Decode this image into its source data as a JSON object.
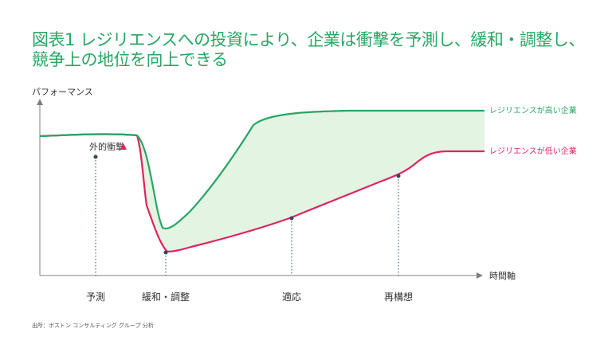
{
  "title": {
    "line1": "図表1 レジリエンスへの投資により、企業は衝撃を予測し、緩和・調整し、",
    "line2": "競争上の地位を向上できる"
  },
  "y_axis_label": "パフォーマンス",
  "x_axis_label": "時間軸",
  "shock_label": "外的衝撃",
  "series": {
    "high": {
      "label": "レジリエンスが高い企業",
      "color": "#2aa564"
    },
    "low": {
      "label": "レジリエンスが低い企業",
      "color": "#e0245e"
    }
  },
  "stages": [
    "予測",
    "緩和・調整",
    "適応",
    "再構想"
  ],
  "colors": {
    "fill": "#e3f4e2",
    "axis": "#7f7f7f",
    "dot": "#2d4a63",
    "title": "#2aa564"
  },
  "source": "出所：ボストン コンサルティング グループ 分析"
}
